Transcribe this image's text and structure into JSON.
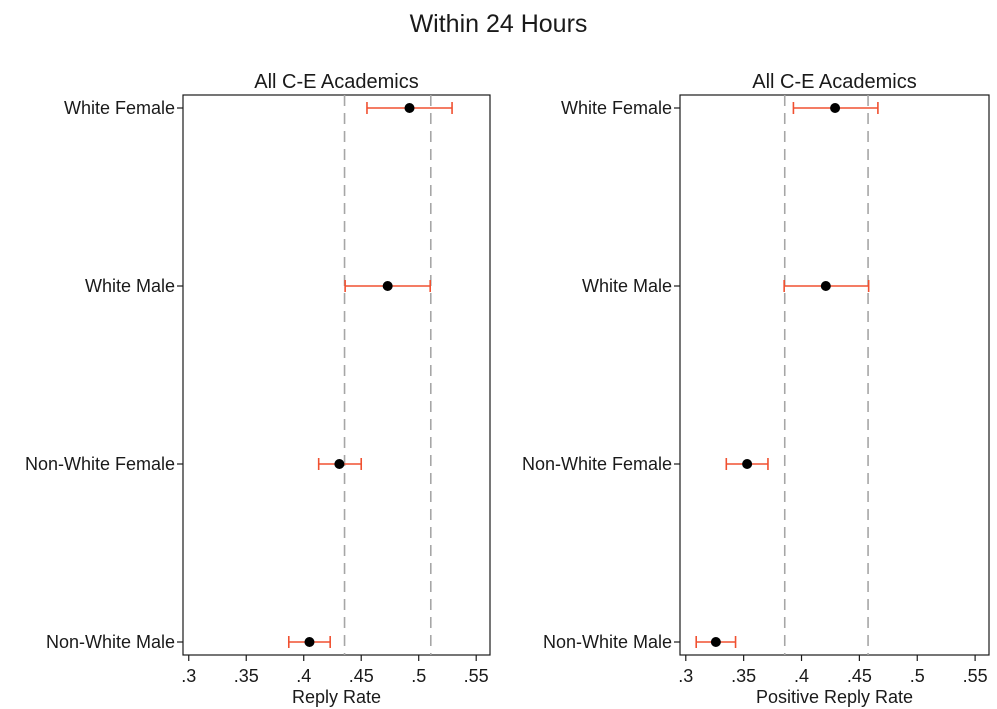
{
  "title": "Within 24 Hours",
  "chart_data": [
    {
      "type": "scatter",
      "subtitle": "All C-E Academics",
      "xlabel": "Reply Rate",
      "xlim": [
        0.295,
        0.562
      ],
      "xticks": [
        0.3,
        0.35,
        0.4,
        0.45,
        0.5,
        0.55
      ],
      "xtick_labels": [
        ".3",
        ".35",
        ".4",
        ".45",
        ".5",
        ".55"
      ],
      "categories": [
        "White Female",
        "White Male",
        "Non-White Female",
        "Non-White Male"
      ],
      "points": [
        {
          "label": "White Female",
          "value": 0.492,
          "ci": [
            0.455,
            0.529
          ]
        },
        {
          "label": "White Male",
          "value": 0.473,
          "ci": [
            0.436,
            0.51
          ]
        },
        {
          "label": "Non-White Female",
          "value": 0.431,
          "ci": [
            0.413,
            0.45
          ]
        },
        {
          "label": "Non-White Male",
          "value": 0.405,
          "ci": [
            0.387,
            0.423
          ]
        }
      ],
      "reference_lines": [
        0.4355,
        0.5105
      ],
      "grid": false
    },
    {
      "type": "scatter",
      "subtitle": "All C-E Academics",
      "xlabel": "Positive Reply Rate",
      "xlim": [
        0.295,
        0.562
      ],
      "xticks": [
        0.3,
        0.35,
        0.4,
        0.45,
        0.5,
        0.55
      ],
      "xtick_labels": [
        ".3",
        ".35",
        ".4",
        ".45",
        ".5",
        ".55"
      ],
      "categories": [
        "White Female",
        "White Male",
        "Non-White Female",
        "Non-White Male"
      ],
      "points": [
        {
          "label": "White Female",
          "value": 0.429,
          "ci": [
            0.393,
            0.466
          ]
        },
        {
          "label": "White Male",
          "value": 0.421,
          "ci": [
            0.385,
            0.458
          ]
        },
        {
          "label": "Non-White Female",
          "value": 0.353,
          "ci": [
            0.335,
            0.371
          ]
        },
        {
          "label": "Non-White Male",
          "value": 0.326,
          "ci": [
            0.309,
            0.343
          ]
        }
      ],
      "reference_lines": [
        0.3855,
        0.4575
      ],
      "grid": false
    }
  ],
  "colors": {
    "ci_line": "#f05030",
    "point": "#000000",
    "reference_line": "#a6a6a6",
    "axis": "#1a1a1a"
  }
}
